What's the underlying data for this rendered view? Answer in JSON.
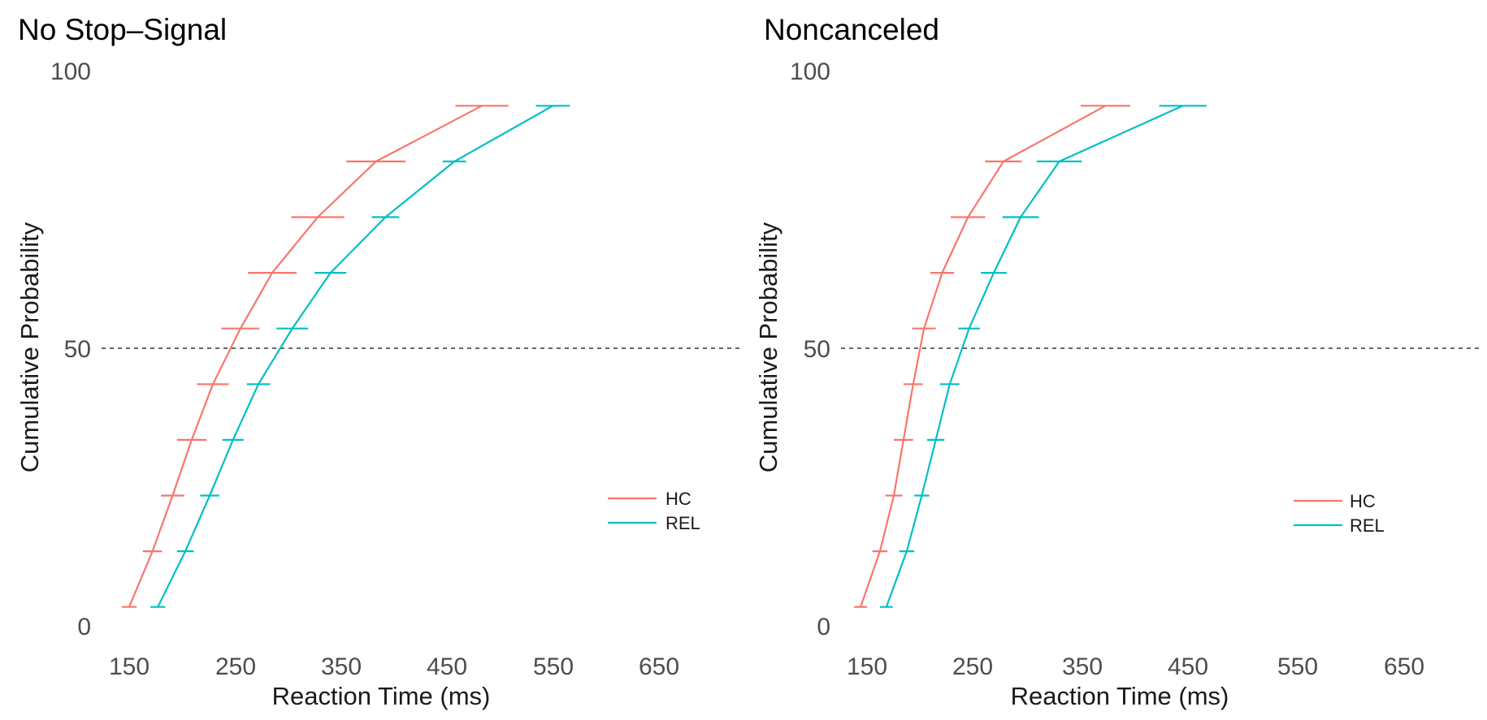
{
  "chart_data": [
    {
      "type": "line",
      "title": "No Stop–Signal",
      "xlabel": "Reaction Time (ms)",
      "ylabel": "Cumulative Probability",
      "xlim": [
        135,
        710
      ],
      "ylim": [
        0,
        100
      ],
      "x_ticks": [
        150,
        250,
        350,
        450,
        550,
        650
      ],
      "y_ticks": [
        0,
        50,
        100
      ],
      "reference_line_y": 50,
      "legend_position": "right",
      "series": [
        {
          "name": "HC",
          "color": "#F8766D",
          "points": [
            {
              "y": 5,
              "x": 150,
              "err": 7
            },
            {
              "y": 15,
              "x": 172,
              "err": 9
            },
            {
              "y": 25,
              "x": 191,
              "err": 11
            },
            {
              "y": 35,
              "x": 209,
              "err": 14
            },
            {
              "y": 45,
              "x": 229,
              "err": 15
            },
            {
              "y": 55,
              "x": 255,
              "err": 18
            },
            {
              "y": 65,
              "x": 285,
              "err": 23
            },
            {
              "y": 75,
              "x": 328,
              "err": 25
            },
            {
              "y": 85,
              "x": 383,
              "err": 28
            },
            {
              "y": 95,
              "x": 483,
              "err": 25
            }
          ]
        },
        {
          "name": "REL",
          "color": "#00BFC4",
          "points": [
            {
              "y": 5,
              "x": 177,
              "err": 7
            },
            {
              "y": 15,
              "x": 203,
              "err": 8
            },
            {
              "y": 25,
              "x": 226,
              "err": 9
            },
            {
              "y": 35,
              "x": 248,
              "err": 10
            },
            {
              "y": 45,
              "x": 272,
              "err": 11
            },
            {
              "y": 55,
              "x": 304,
              "err": 15
            },
            {
              "y": 65,
              "x": 340,
              "err": 15
            },
            {
              "y": 75,
              "x": 392,
              "err": 13
            },
            {
              "y": 85,
              "x": 457,
              "err": 11
            },
            {
              "y": 95,
              "x": 550,
              "err": 16
            }
          ]
        }
      ]
    },
    {
      "type": "line",
      "title": "Noncanceled",
      "xlabel": "Reaction Time (ms)",
      "ylabel": "Cumulative Probability",
      "xlim": [
        135,
        710
      ],
      "ylim": [
        0,
        100
      ],
      "x_ticks": [
        150,
        250,
        350,
        450,
        550,
        650
      ],
      "y_ticks": [
        0,
        50,
        100
      ],
      "reference_line_y": 50,
      "legend_position": "right",
      "series": [
        {
          "name": "HC",
          "color": "#F8766D",
          "points": [
            {
              "y": 5,
              "x": 144,
              "err": 6
            },
            {
              "y": 15,
              "x": 162,
              "err": 7
            },
            {
              "y": 25,
              "x": 175,
              "err": 8
            },
            {
              "y": 35,
              "x": 184,
              "err": 9
            },
            {
              "y": 45,
              "x": 193,
              "err": 9
            },
            {
              "y": 55,
              "x": 203,
              "err": 11
            },
            {
              "y": 65,
              "x": 220,
              "err": 11
            },
            {
              "y": 75,
              "x": 244,
              "err": 16
            },
            {
              "y": 85,
              "x": 277,
              "err": 17
            },
            {
              "y": 95,
              "x": 372,
              "err": 23
            }
          ]
        },
        {
          "name": "REL",
          "color": "#00BFC4",
          "points": [
            {
              "y": 5,
              "x": 168,
              "err": 6
            },
            {
              "y": 15,
              "x": 187,
              "err": 7
            },
            {
              "y": 25,
              "x": 201,
              "err": 7
            },
            {
              "y": 35,
              "x": 214,
              "err": 8
            },
            {
              "y": 45,
              "x": 227,
              "err": 9
            },
            {
              "y": 55,
              "x": 245,
              "err": 10
            },
            {
              "y": 65,
              "x": 268,
              "err": 12
            },
            {
              "y": 75,
              "x": 293,
              "err": 17
            },
            {
              "y": 85,
              "x": 329,
              "err": 21
            },
            {
              "y": 95,
              "x": 444,
              "err": 22
            }
          ]
        }
      ]
    }
  ]
}
